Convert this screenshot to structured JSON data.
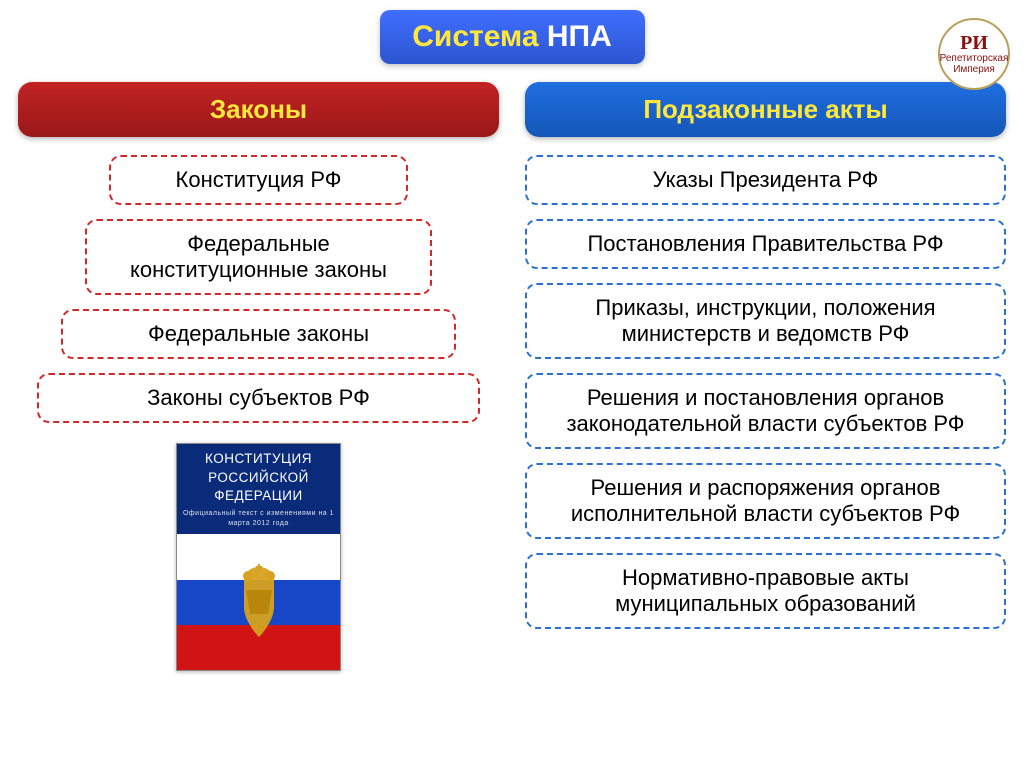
{
  "title": {
    "part1": "Система ",
    "part2": "НПА",
    "bg": "#3f6fff"
  },
  "logo": {
    "ri": "РИ",
    "line1": "Репетиторская",
    "line2": "Империя"
  },
  "left": {
    "header": "Законы",
    "header_bg": "#c22323",
    "border_color": "#d02828",
    "widths": [
      62,
      72,
      82,
      92
    ],
    "items": [
      "Конституция РФ",
      "Федеральные конституционные законы",
      "Федеральные законы",
      "Законы субъектов РФ"
    ]
  },
  "right": {
    "header": "Подзаконные акты",
    "header_bg": "#1f6fe0",
    "border_color": "#2a6fd6",
    "items": [
      "Указы Президента РФ",
      "Постановления Правительства РФ",
      "Приказы, инструкции, положения министерств и ведомств РФ",
      "Решения и постановления органов законодательной власти субъектов РФ",
      "Решения и распоряжения органов исполнительной власти субъектов РФ",
      "Нормативно-правовые акты муниципальных образований"
    ]
  },
  "book": {
    "top_bg": "#0a2a7a",
    "title_l1": "КОНСТИТУЦИЯ",
    "title_l2": "РОССИЙСКОЙ",
    "title_l3": "ФЕДЕРАЦИИ",
    "sub": "Официальный текст с изменениями на 1 марта 2012 года",
    "flag": {
      "white": "#ffffff",
      "blue": "#1746c7",
      "red": "#d01414"
    },
    "emblem_color": "#d6a21f"
  },
  "layout": {
    "item_fontsize": 22,
    "header_fontsize": 26,
    "title_fontsize": 30
  }
}
